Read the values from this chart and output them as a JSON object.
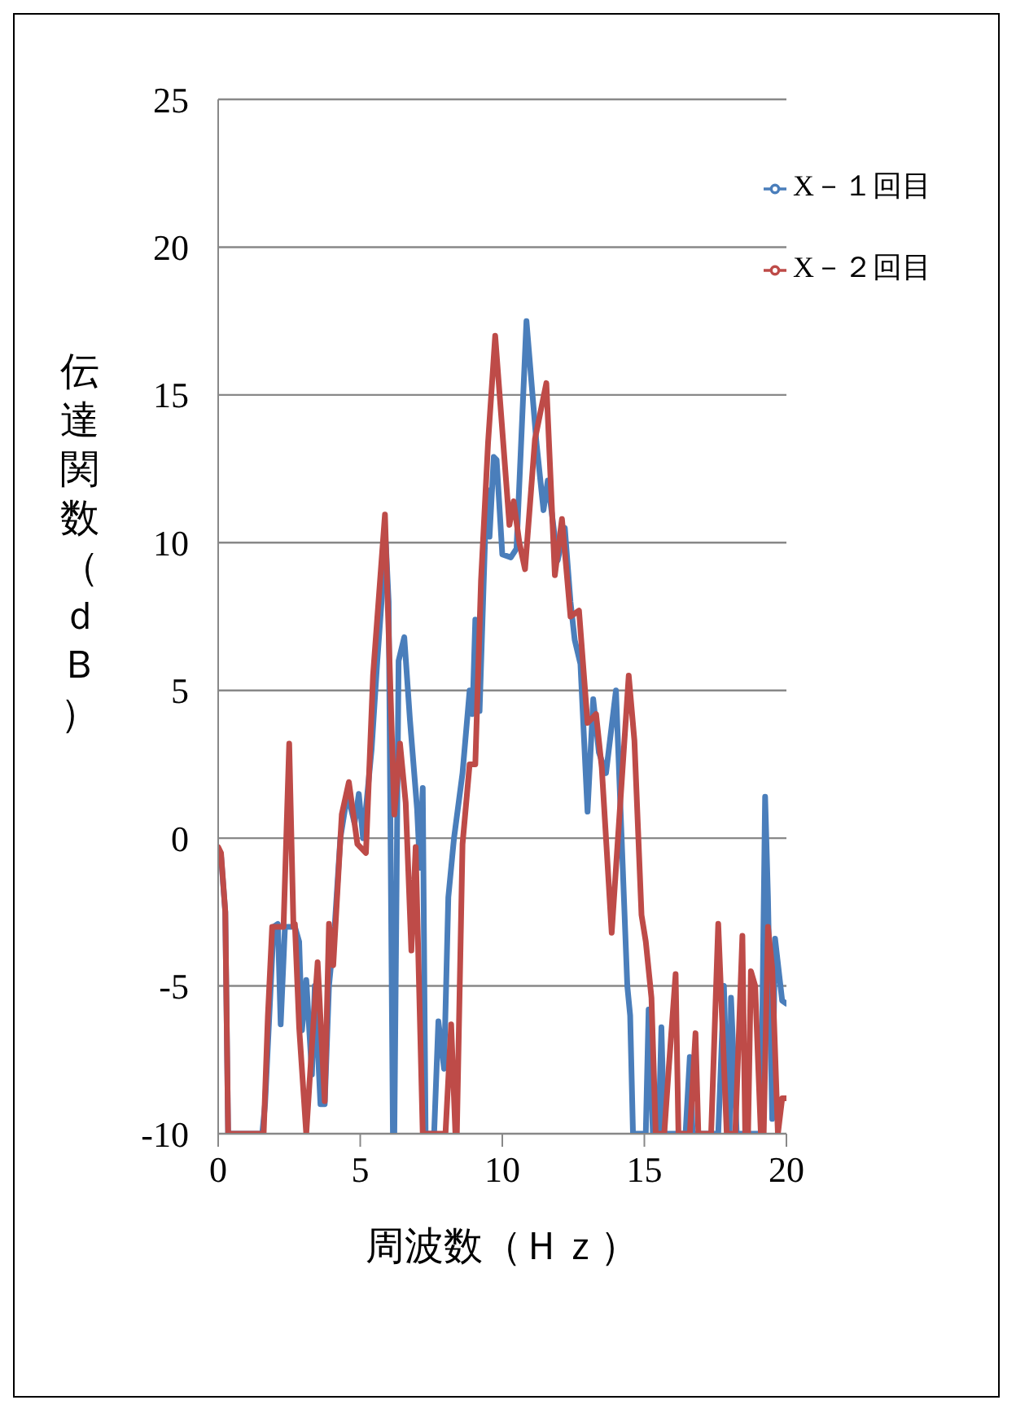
{
  "chart_data": {
    "type": "line",
    "xlabel": "周波数（Ｈｚ）",
    "ylabel": "伝達関数（ｄＢ）",
    "xlim": [
      0,
      20
    ],
    "xticks": [
      0,
      5,
      10,
      15,
      20
    ],
    "ylim": [
      -10,
      25
    ],
    "yticks": [
      -10,
      -5,
      0,
      5,
      10,
      15,
      20,
      25
    ],
    "grid": "y",
    "legend": "top right",
    "marker": "none",
    "line_style": "solid",
    "series": [
      {
        "name": "X－１回目",
        "color": "#4a7ebb",
        "x": [
          0,
          0.1,
          0.25,
          0.35,
          1.55,
          1.65,
          1.95,
          2.1,
          2.2,
          2.35,
          2.7,
          2.85,
          2.95,
          3.1,
          3.3,
          3.4,
          3.6,
          3.75,
          3.9,
          4.1,
          4.3,
          4.55,
          4.8,
          4.95,
          5.1,
          5.25,
          5.4,
          5.6,
          5.75,
          5.9,
          6.0,
          6.15,
          6.2,
          6.35,
          6.55,
          6.75,
          7.0,
          7.1,
          7.2,
          7.3,
          7.6,
          7.75,
          7.95,
          8.1,
          8.3,
          8.6,
          8.85,
          8.95,
          9.05,
          9.2,
          9.45,
          9.55,
          9.7,
          9.8,
          10.0,
          10.3,
          10.5,
          10.85,
          11.2,
          11.45,
          11.6,
          11.95,
          12.2,
          12.4,
          12.55,
          12.75,
          13.0,
          13.2,
          13.4,
          13.65,
          14.0,
          14.4,
          14.5,
          14.6,
          15.05,
          15.15,
          15.3,
          15.5,
          15.6,
          15.7,
          16.45,
          16.6,
          16.7,
          17.6,
          17.8,
          17.95,
          18.0,
          18.05,
          18.25,
          19.1,
          19.25,
          19.35,
          19.5,
          19.6,
          19.85,
          20
        ],
        "values": [
          -0.5,
          -0.6,
          -2.5,
          -10,
          -10,
          -9,
          -3,
          -2.9,
          -6.3,
          -3,
          -3,
          -3.5,
          -6.5,
          -4.8,
          -8,
          -5,
          -9,
          -9,
          -5,
          -3,
          0,
          1.5,
          0.5,
          1.5,
          0,
          1.5,
          3,
          6,
          8,
          10,
          8,
          -10,
          -10,
          6,
          6.8,
          4,
          1,
          -1,
          1.7,
          -10,
          -10,
          -6.2,
          -7.8,
          -2,
          0,
          2.2,
          5,
          4.2,
          7.4,
          4.3,
          11.8,
          10.2,
          12.9,
          12.8,
          9.6,
          9.5,
          9.8,
          17.5,
          13.4,
          11.1,
          12.1,
          9.4,
          10.5,
          8,
          6.7,
          5.9,
          0.9,
          4.7,
          2.9,
          2.2,
          5,
          -5,
          -6,
          -10,
          -10,
          -5.8,
          -10,
          -10,
          -6.4,
          -10,
          -10,
          -7.4,
          -10,
          -10,
          -5,
          -10,
          -10,
          -5.4,
          -10,
          -10,
          1.4,
          -2,
          -9.5,
          -3.4,
          -5.5,
          -5.6
        ]
      },
      {
        "name": "X－２回目",
        "color": "#be4b48",
        "x": [
          0,
          0.1,
          0.25,
          0.35,
          1.6,
          1.75,
          1.9,
          2.3,
          2.5,
          2.65,
          2.7,
          2.85,
          3.1,
          3.3,
          3.5,
          3.75,
          3.9,
          4.05,
          4.35,
          4.6,
          4.9,
          5.2,
          5.45,
          5.87,
          6.2,
          6.4,
          6.6,
          6.8,
          6.95,
          7.2,
          8.0,
          8.2,
          8.35,
          8.4,
          8.6,
          8.85,
          9.05,
          9.25,
          9.5,
          9.75,
          10.25,
          10.4,
          10.6,
          10.8,
          11.15,
          11.55,
          11.85,
          12.1,
          12.4,
          12.7,
          13.0,
          13.3,
          13.5,
          13.85,
          14.45,
          14.65,
          14.9,
          15.05,
          15.25,
          15.4,
          15.7,
          15.85,
          16.1,
          16.2,
          16.6,
          16.8,
          16.9,
          17.35,
          17.6,
          17.9,
          18.2,
          18.45,
          18.55,
          18.65,
          18.75,
          18.9,
          19.1,
          19.2,
          19.35,
          19.5,
          19.7,
          19.85,
          20
        ],
        "values": [
          -0.3,
          -0.5,
          -2.5,
          -10,
          -10,
          -6,
          -3,
          -3,
          3.2,
          -3,
          -2.9,
          -6.4,
          -10,
          -7,
          -4.2,
          -8.9,
          -2.9,
          -4.3,
          0.8,
          1.9,
          -0.2,
          -0.5,
          5.5,
          10.95,
          0.8,
          3.2,
          1.2,
          -3.8,
          -0.3,
          -10,
          -10,
          -6.3,
          -10,
          -10,
          -0.2,
          2.5,
          2.5,
          8.7,
          13.4,
          17,
          10.6,
          11.4,
          10,
          9.1,
          13.5,
          15.4,
          8.9,
          10.8,
          7.5,
          7.7,
          3.9,
          4.2,
          2.4,
          -3.2,
          5.5,
          3.3,
          -2.6,
          -3.5,
          -5.4,
          -10,
          -10,
          -7.9,
          -4.6,
          -10,
          -10,
          -6.6,
          -10,
          -10,
          -2.9,
          -10,
          -10,
          -3.3,
          -10,
          -10,
          -4.5,
          -5,
          -10,
          -10,
          -3,
          -4.4,
          -10,
          -8.8,
          -8.8
        ]
      }
    ]
  }
}
